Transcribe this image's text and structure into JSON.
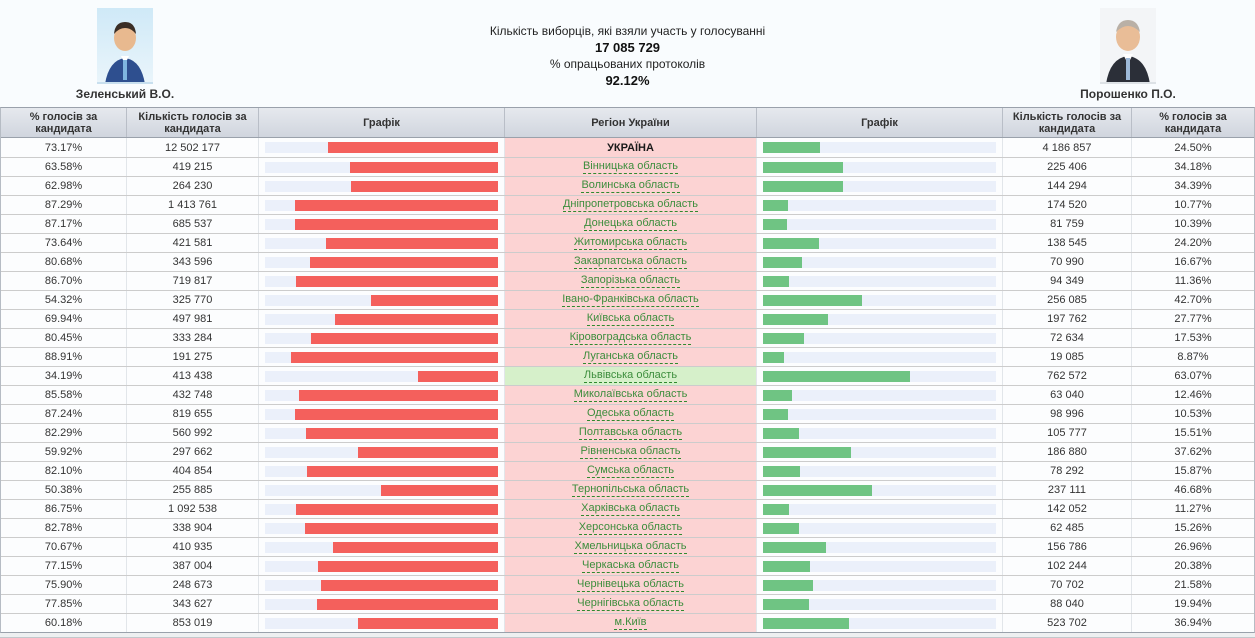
{
  "header": {
    "left_candidate": {
      "name": "Зеленський В.О."
    },
    "right_candidate": {
      "name": "Порошенко П.О."
    },
    "turnout_label": "Кількість виборців, які взяли участь у голосуванні",
    "turnout_value": "17 085 729",
    "protocols_label": "% опрацьованих протоколів",
    "protocols_value": "92.12%"
  },
  "colors": {
    "zelensky_bar": "#f4605c",
    "poroshenko_bar": "#6fc483",
    "bar_track": "#ebf0fa",
    "region_cell_bg": "#fcd3d3",
    "leader_highlight_bg": "#d6f0ca",
    "region_link_green": "#3c8d3c"
  },
  "table": {
    "columns": [
      "% голосів за кандидата",
      "Кількість голосів за кандидата",
      "Графік",
      "Регіон України",
      "Графік",
      "Кількість голосів за кандидата",
      "% голосів за кандидата"
    ],
    "rows": [
      {
        "region": "УКРАЇНА",
        "country": true,
        "left_pct": "73.17%",
        "left_votes": "12 502 177",
        "right_votes": "4 186 857",
        "right_pct": "24.50%"
      },
      {
        "region": "Вінницька область",
        "left_pct": "63.58%",
        "left_votes": "419 215",
        "right_votes": "225 406",
        "right_pct": "34.18%"
      },
      {
        "region": "Волинська область",
        "left_pct": "62.98%",
        "left_votes": "264 230",
        "right_votes": "144 294",
        "right_pct": "34.39%"
      },
      {
        "region": "Дніпропетровська область",
        "left_pct": "87.29%",
        "left_votes": "1 413 761",
        "right_votes": "174 520",
        "right_pct": "10.77%"
      },
      {
        "region": "Донецька область",
        "left_pct": "87.17%",
        "left_votes": "685 537",
        "right_votes": "81 759",
        "right_pct": "10.39%"
      },
      {
        "region": "Житомирська область",
        "left_pct": "73.64%",
        "left_votes": "421 581",
        "right_votes": "138 545",
        "right_pct": "24.20%"
      },
      {
        "region": "Закарпатська область",
        "left_pct": "80.68%",
        "left_votes": "343 596",
        "right_votes": "70 990",
        "right_pct": "16.67%"
      },
      {
        "region": "Запорізька область",
        "left_pct": "86.70%",
        "left_votes": "719 817",
        "right_votes": "94 349",
        "right_pct": "11.36%"
      },
      {
        "region": "Івано-Франківська область",
        "left_pct": "54.32%",
        "left_votes": "325 770",
        "right_votes": "256 085",
        "right_pct": "42.70%"
      },
      {
        "region": "Київська область",
        "left_pct": "69.94%",
        "left_votes": "497 981",
        "right_votes": "197 762",
        "right_pct": "27.77%"
      },
      {
        "region": "Кіровоградська область",
        "left_pct": "80.45%",
        "left_votes": "333 284",
        "right_votes": "72 634",
        "right_pct": "17.53%"
      },
      {
        "region": "Луганська область",
        "left_pct": "88.91%",
        "left_votes": "191 275",
        "right_votes": "19 085",
        "right_pct": "8.87%"
      },
      {
        "region": "Львівська область",
        "highlight": true,
        "left_pct": "34.19%",
        "left_votes": "413 438",
        "right_votes": "762 572",
        "right_pct": "63.07%"
      },
      {
        "region": "Миколаївська область",
        "left_pct": "85.58%",
        "left_votes": "432 748",
        "right_votes": "63 040",
        "right_pct": "12.46%"
      },
      {
        "region": "Одеська область",
        "left_pct": "87.24%",
        "left_votes": "819 655",
        "right_votes": "98 996",
        "right_pct": "10.53%"
      },
      {
        "region": "Полтавська область",
        "left_pct": "82.29%",
        "left_votes": "560 992",
        "right_votes": "105 777",
        "right_pct": "15.51%"
      },
      {
        "region": "Рівненська область",
        "left_pct": "59.92%",
        "left_votes": "297 662",
        "right_votes": "186 880",
        "right_pct": "37.62%"
      },
      {
        "region": "Сумська область",
        "left_pct": "82.10%",
        "left_votes": "404 854",
        "right_votes": "78 292",
        "right_pct": "15.87%"
      },
      {
        "region": "Тернопільська область",
        "left_pct": "50.38%",
        "left_votes": "255 885",
        "right_votes": "237 111",
        "right_pct": "46.68%"
      },
      {
        "region": "Харківська область",
        "left_pct": "86.75%",
        "left_votes": "1 092 538",
        "right_votes": "142 052",
        "right_pct": "11.27%"
      },
      {
        "region": "Херсонська область",
        "left_pct": "82.78%",
        "left_votes": "338 904",
        "right_votes": "62 485",
        "right_pct": "15.26%"
      },
      {
        "region": "Хмельницька область",
        "left_pct": "70.67%",
        "left_votes": "410 935",
        "right_votes": "156 786",
        "right_pct": "26.96%"
      },
      {
        "region": "Черкаська область",
        "left_pct": "77.15%",
        "left_votes": "387 004",
        "right_votes": "102 244",
        "right_pct": "20.38%"
      },
      {
        "region": "Чернівецька область",
        "left_pct": "75.90%",
        "left_votes": "248 673",
        "right_votes": "70 702",
        "right_pct": "21.58%"
      },
      {
        "region": "Чернігівська область",
        "left_pct": "77.85%",
        "left_votes": "343 627",
        "right_votes": "88 040",
        "right_pct": "19.94%"
      },
      {
        "region": "м.Київ",
        "left_pct": "60.18%",
        "left_votes": "853 019",
        "right_votes": "523 702",
        "right_pct": "36.94%"
      }
    ]
  }
}
